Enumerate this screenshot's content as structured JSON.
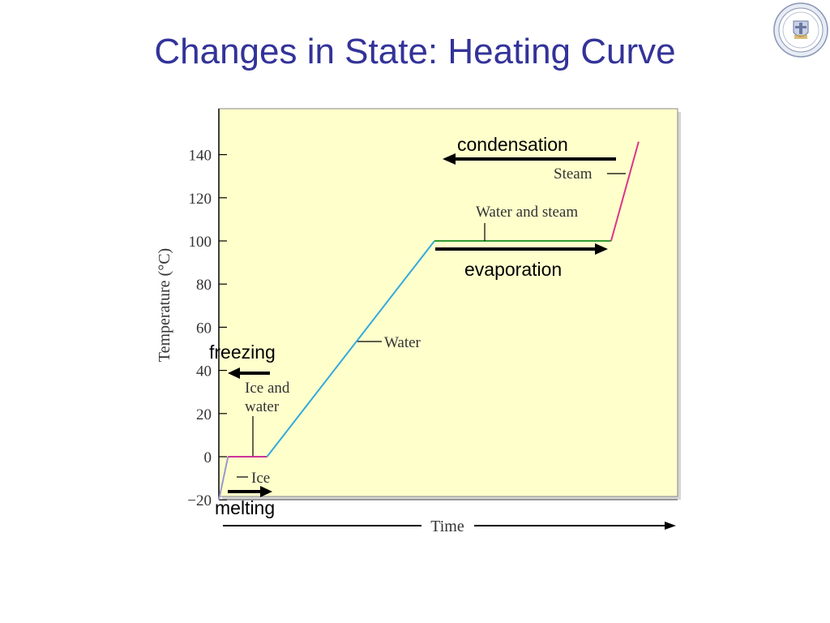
{
  "slide": {
    "title": "Changes in State: Heating Curve",
    "seal_icon": "university-seal-icon"
  },
  "colors": {
    "title": "#333399",
    "plot_background": "#ffffcc",
    "ice_segment": "#9999cc",
    "melting_segment": "#cc3399",
    "water_segment": "#33aadd",
    "boiling_segment": "#339933",
    "steam_segment": "#dd3388",
    "arrows": "#000000"
  },
  "chart_data": {
    "type": "line",
    "title": "",
    "xlabel": "Time",
    "ylabel": "Temperature (°C)",
    "ylim": [
      -20,
      160
    ],
    "yticks": [
      -20,
      0,
      20,
      40,
      60,
      80,
      100,
      120,
      140
    ],
    "ytick_labels": [
      "−20",
      "0",
      "20",
      "40",
      "60",
      "80",
      "100",
      "120",
      "140"
    ],
    "x_ticks_shown": false,
    "grid": false,
    "series": [
      {
        "segments": [
          {
            "phase": "ice",
            "points": [
              [
                0.0,
                -20
              ],
              [
                0.02,
                0
              ]
            ]
          },
          {
            "phase": "melting",
            "points": [
              [
                0.02,
                0
              ],
              [
                0.105,
                0
              ]
            ]
          },
          {
            "phase": "water",
            "points": [
              [
                0.105,
                0
              ],
              [
                0.47,
                100
              ]
            ]
          },
          {
            "phase": "boiling",
            "points": [
              [
                0.47,
                100
              ],
              [
                0.855,
                100
              ]
            ]
          },
          {
            "phase": "steam",
            "points": [
              [
                0.855,
                100
              ],
              [
                0.915,
                146
              ]
            ]
          }
        ]
      }
    ],
    "annotations": [
      {
        "text": "Ice",
        "x": 0.065,
        "y": -9
      },
      {
        "text": "Ice and",
        "x": 0.125,
        "y": 32
      },
      {
        "text": "water",
        "x": 0.125,
        "y": 23
      },
      {
        "text": "Water",
        "x": 0.36,
        "y": 53
      },
      {
        "text": "Water and steam",
        "x": 0.585,
        "y": 114
      },
      {
        "text": "Steam",
        "x": 0.75,
        "y": 138
      }
    ],
    "process_arrows": [
      {
        "label": "condensation",
        "direction": "left"
      },
      {
        "label": "evaporation",
        "direction": "right"
      },
      {
        "label": "freezing",
        "direction": "left"
      },
      {
        "label": "melting",
        "direction": "right"
      }
    ]
  }
}
